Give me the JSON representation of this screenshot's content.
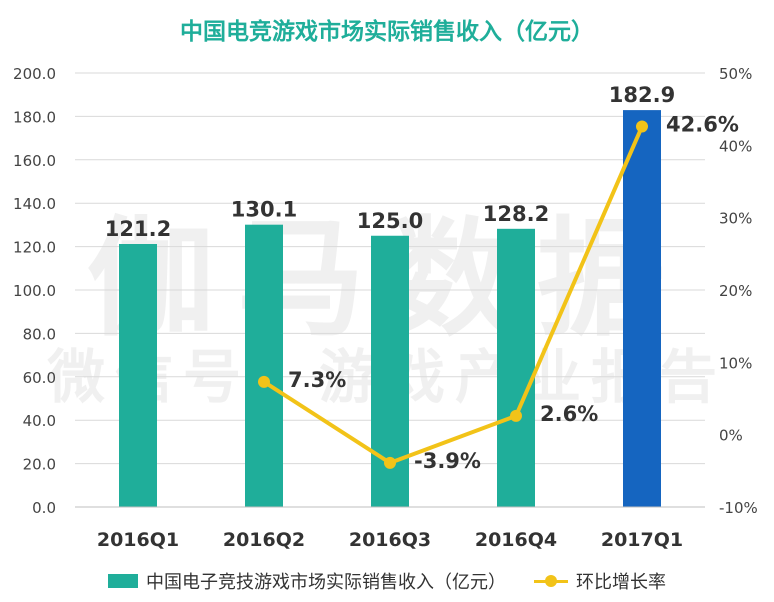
{
  "chart_data": {
    "type": "bar+line",
    "title": "中国电竞游戏市场实际销售收入（亿元）",
    "categories": [
      "2016Q1",
      "2016Q2",
      "2016Q3",
      "2016Q4",
      "2017Q1"
    ],
    "series": [
      {
        "name": "中国电子竞技游戏市场实际销售收入（亿元）",
        "type": "bar",
        "axis": "left",
        "values": [
          121.2,
          130.1,
          125.0,
          128.2,
          182.9
        ],
        "value_labels": [
          "121.2",
          "130.1",
          "125.0",
          "128.2",
          "182.9"
        ],
        "colors": [
          "#1fae9a",
          "#1fae9a",
          "#1fae9a",
          "#1fae9a",
          "#1565c0"
        ]
      },
      {
        "name": "环比增长率",
        "type": "line",
        "axis": "right",
        "values": [
          null,
          7.3,
          -3.9,
          2.6,
          42.6
        ],
        "value_labels": [
          "",
          "7.3%",
          "-3.9%",
          "2.6%",
          "42.6%"
        ],
        "color": "#f2c318"
      }
    ],
    "y_left": {
      "min": 0,
      "max": 200,
      "step": 20,
      "tick_labels": [
        "0.0",
        "20.0",
        "40.0",
        "60.0",
        "80.0",
        "100.0",
        "120.0",
        "140.0",
        "160.0",
        "180.0",
        "200.0"
      ]
    },
    "y_right": {
      "min": -10,
      "max": 50,
      "step": 10,
      "tick_labels": [
        "-10%",
        "0%",
        "10%",
        "20%",
        "30%",
        "40%",
        "50%"
      ]
    },
    "grid": true,
    "legend": "bottom"
  },
  "watermark": {
    "line1": "伽马数据",
    "line2": "微信号：游戏产业报告"
  }
}
